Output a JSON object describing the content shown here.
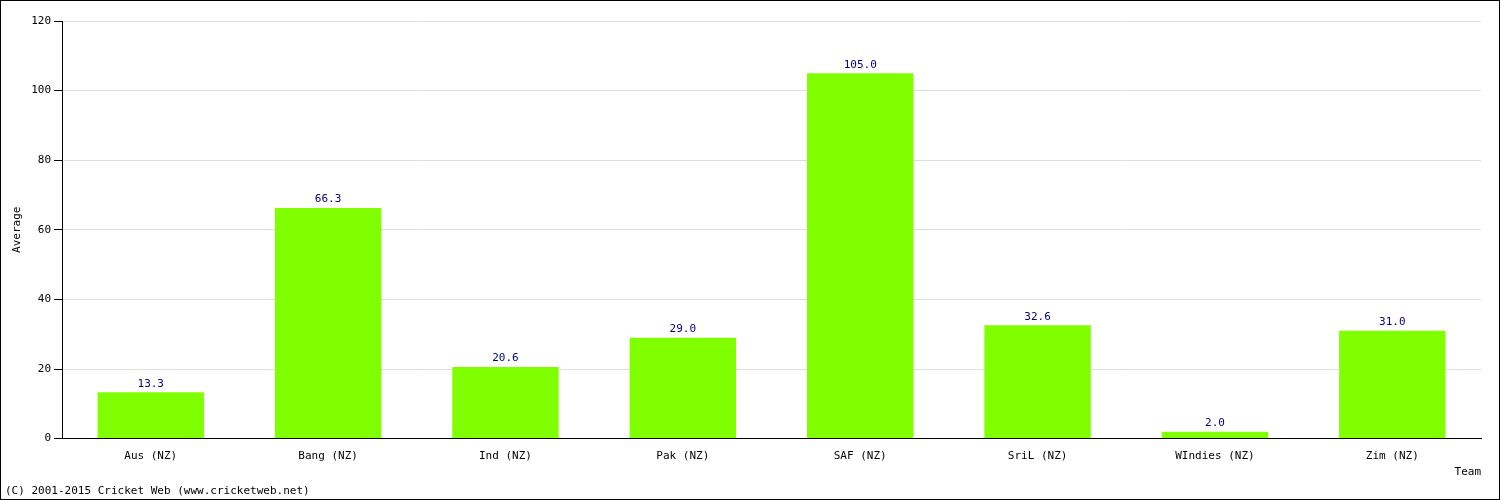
{
  "chart_data": {
    "type": "bar",
    "x_label": "Team",
    "y_label": "Average",
    "categories": [
      "Aus (NZ)",
      "Bang (NZ)",
      "Ind (NZ)",
      "Pak (NZ)",
      "SAF (NZ)",
      "SriL (NZ)",
      "WIndies (NZ)",
      "Zim (NZ)"
    ],
    "values": [
      13.3,
      66.3,
      20.6,
      29.0,
      105.0,
      32.6,
      2.0,
      31.0
    ],
    "value_labels": [
      "13.3",
      "66.3",
      "20.6",
      "29.0",
      "105.0",
      "32.6",
      "2.0",
      "31.0"
    ],
    "color": "#80ff00",
    "ylim": [
      0,
      120
    ],
    "yticks": [
      0,
      20,
      40,
      60,
      80,
      100,
      120
    ],
    "grid": true,
    "data_labels": true,
    "annotations": [
      "(C) 2001-2015 Cricket Web (www.cricketweb.net)"
    ]
  }
}
